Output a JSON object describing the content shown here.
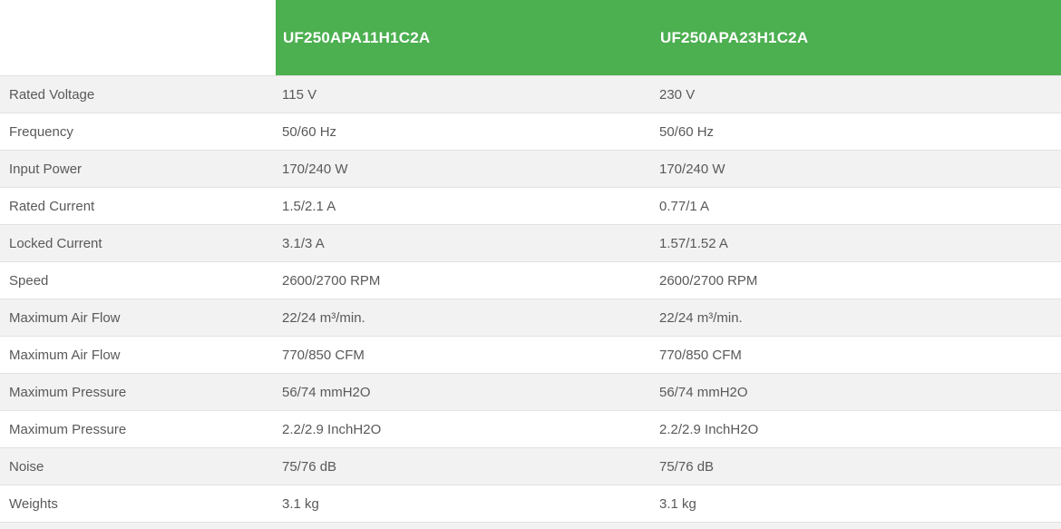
{
  "theme": {
    "header_bg": "#4caf50",
    "header_text": "#ffffff",
    "row_alt_bg": "#f2f2f2",
    "row_bg": "#ffffff",
    "border": "#e2e2e2",
    "text": "#595959"
  },
  "table": {
    "columns": {
      "model_1": "UF250APA11H1C2A",
      "model_2": "UF250APA23H1C2A"
    },
    "rows": [
      {
        "label": "Rated Voltage",
        "values": [
          "115 V",
          "230 V"
        ]
      },
      {
        "label": "Frequency",
        "values": [
          "50/60 Hz",
          "50/60 Hz"
        ]
      },
      {
        "label": "Input Power",
        "values": [
          "170/240 W",
          "170/240 W"
        ]
      },
      {
        "label": "Rated Current",
        "values": [
          "1.5/2.1 A",
          "0.77/1 A"
        ]
      },
      {
        "label": "Locked Current",
        "values": [
          "3.1/3 A",
          "1.57/1.52 A"
        ]
      },
      {
        "label": "Speed",
        "values": [
          "2600/2700 RPM",
          "2600/2700 RPM"
        ]
      },
      {
        "label": "Maximum Air Flow",
        "values": [
          "22/24 m³/min.",
          "22/24 m³/min."
        ]
      },
      {
        "label": "Maximum Air Flow",
        "values": [
          "770/850 CFM",
          "770/850 CFM"
        ]
      },
      {
        "label": "Maximum Pressure",
        "values": [
          "56/74 mmH2O",
          "56/74 mmH2O"
        ]
      },
      {
        "label": "Maximum Pressure",
        "values": [
          "2.2/2.9 InchH2O",
          "2.2/2.9 InchH2O"
        ]
      },
      {
        "label": "Noise",
        "values": [
          "75/76 dB",
          "75/76 dB"
        ]
      },
      {
        "label": "Weights",
        "values": [
          "3.1 kg",
          "3.1 kg"
        ]
      }
    ]
  }
}
